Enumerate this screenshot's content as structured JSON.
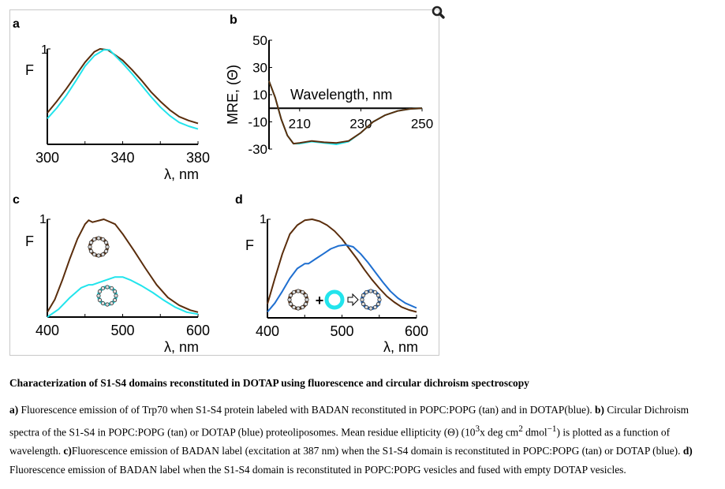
{
  "colors": {
    "tan": "#5a2d0c",
    "cyan": "#22e4ec",
    "blue": "#1f6fd0"
  },
  "icons": {
    "zoom": "magnifier-icon"
  },
  "chart_data": [
    {
      "panel": "a",
      "type": "line",
      "ylabel": "F",
      "xlabel": "λ, nm",
      "xlim": [
        300,
        380
      ],
      "ylim": [
        0,
        1
      ],
      "xticks": [
        300,
        340,
        380
      ],
      "ytick_label": "1",
      "series": [
        {
          "color": "tan",
          "x": [
            300,
            305,
            310,
            315,
            320,
            325,
            328,
            332,
            335,
            340,
            345,
            350,
            355,
            360,
            365,
            370,
            375,
            380
          ],
          "y": [
            0.33,
            0.45,
            0.58,
            0.72,
            0.86,
            0.97,
            1.0,
            0.99,
            0.95,
            0.88,
            0.78,
            0.67,
            0.55,
            0.45,
            0.36,
            0.29,
            0.25,
            0.22
          ]
        },
        {
          "color": "cyan",
          "x": [
            300,
            305,
            310,
            315,
            320,
            325,
            330,
            333,
            336,
            340,
            345,
            350,
            355,
            360,
            365,
            370,
            375,
            380
          ],
          "y": [
            0.27,
            0.38,
            0.51,
            0.66,
            0.82,
            0.93,
            0.99,
            0.99,
            0.93,
            0.85,
            0.74,
            0.62,
            0.5,
            0.39,
            0.3,
            0.23,
            0.19,
            0.16
          ]
        }
      ]
    },
    {
      "panel": "b",
      "type": "line",
      "ylabel": "MRE, (Θ)",
      "xlabel": "Wavelength, nm",
      "xlim": [
        200,
        250
      ],
      "ylim": [
        -30,
        50
      ],
      "xticks": [
        210,
        230,
        250
      ],
      "yticks": [
        50,
        30,
        10,
        -10,
        -30
      ],
      "series": [
        {
          "color": "cyan",
          "x": [
            200,
            202,
            204,
            206,
            208,
            210,
            214,
            218,
            222,
            226,
            230,
            234,
            238,
            242,
            246,
            250
          ],
          "y": [
            20,
            8,
            -8,
            -20,
            -26,
            -26,
            -24.5,
            -25.5,
            -26.5,
            -24.5,
            -18,
            -10,
            -5,
            -2,
            -0.5,
            0
          ]
        },
        {
          "color": "tan",
          "x": [
            200,
            202,
            204,
            206,
            208,
            210,
            214,
            218,
            222,
            226,
            230,
            234,
            238,
            242,
            246,
            250
          ],
          "y": [
            20,
            8,
            -8,
            -20,
            -26,
            -25.5,
            -24,
            -25,
            -25.5,
            -24,
            -18,
            -10,
            -5,
            -2,
            -0.5,
            0
          ]
        }
      ]
    },
    {
      "panel": "c",
      "type": "line",
      "ylabel": "F",
      "xlabel": "λ, nm",
      "xlim": [
        400,
        600
      ],
      "ylim": [
        0,
        1
      ],
      "xticks": [
        400,
        500,
        600
      ],
      "ytick_label": "1",
      "series": [
        {
          "color": "tan",
          "x": [
            400,
            410,
            420,
            430,
            440,
            450,
            455,
            460,
            475,
            490,
            500,
            515,
            530,
            545,
            560,
            575,
            590,
            600
          ],
          "y": [
            0.05,
            0.18,
            0.38,
            0.6,
            0.8,
            0.95,
            0.99,
            0.97,
            1.0,
            0.95,
            0.85,
            0.68,
            0.5,
            0.33,
            0.2,
            0.12,
            0.07,
            0.05
          ]
        },
        {
          "color": "cyan",
          "x": [
            400,
            415,
            430,
            445,
            455,
            460,
            475,
            490,
            500,
            510,
            525,
            540,
            555,
            570,
            585,
            600
          ],
          "y": [
            0,
            0.08,
            0.2,
            0.3,
            0.33,
            0.33,
            0.37,
            0.41,
            0.41,
            0.38,
            0.32,
            0.25,
            0.17,
            0.1,
            0.05,
            0.03
          ]
        }
      ]
    },
    {
      "panel": "d",
      "type": "line",
      "ylabel": "F",
      "xlabel": "λ, nm",
      "xlim": [
        400,
        600
      ],
      "ylim": [
        0,
        1
      ],
      "xticks": [
        400,
        500,
        600
      ],
      "ytick_label": "1",
      "series": [
        {
          "color": "tan",
          "x": [
            400,
            410,
            420,
            430,
            440,
            450,
            460,
            470,
            480,
            490,
            500,
            510,
            520,
            530,
            540,
            550,
            560,
            570,
            580,
            590,
            600
          ],
          "y": [
            0.14,
            0.4,
            0.65,
            0.85,
            0.94,
            0.99,
            1.0,
            0.98,
            0.94,
            0.88,
            0.8,
            0.7,
            0.6,
            0.49,
            0.39,
            0.3,
            0.22,
            0.16,
            0.11,
            0.08,
            0.06
          ]
        },
        {
          "color": "blue",
          "x": [
            400,
            410,
            420,
            430,
            440,
            450,
            455,
            465,
            475,
            485,
            495,
            505,
            515,
            525,
            535,
            545,
            555,
            565,
            575,
            585,
            600
          ],
          "y": [
            0.06,
            0.15,
            0.27,
            0.4,
            0.5,
            0.55,
            0.55,
            0.6,
            0.65,
            0.7,
            0.73,
            0.74,
            0.72,
            0.65,
            0.56,
            0.46,
            0.36,
            0.27,
            0.2,
            0.15,
            0.1
          ]
        }
      ]
    }
  ],
  "caption": {
    "title": "Characterization of S1-S4 domains reconstituted in DOTAP using fluorescence and circular dichroism spectroscopy",
    "a_label": "a)",
    "a_text": " Fluorescence emission of of Trp70 when S1-S4 protein labeled with BADAN reconstituted in POPC:POPG (tan) and in DOTAP(blue). ",
    "b_label": "b)",
    "b_text": " Circular Dichroism spectra of the S1-S4 in POPC:POPG (tan) or DOTAP (blue) proteoliposomes. Mean residue ellipticity (Θ) (10",
    "b_sup1": "3",
    "b_text2": "x deg cm",
    "b_sup2": "2",
    "b_text3": " dmol",
    "b_sup3": "−1",
    "b_text4": ") is plotted as a function of wavelength. ",
    "c_label": "c)",
    "c_text": "Fluorescence emission of BADAN label (excitation at 387 nm) when the S1-S4 domain is reconstituted in POPC:POPG (tan) or DOTAP (blue). ",
    "d_label": "d)",
    "d_text": " Fluorescence emission of BADAN label when the S1-S4 domain is reconstituted in POPC:POPG vesicles and fused with empty DOTAP vesicles."
  }
}
